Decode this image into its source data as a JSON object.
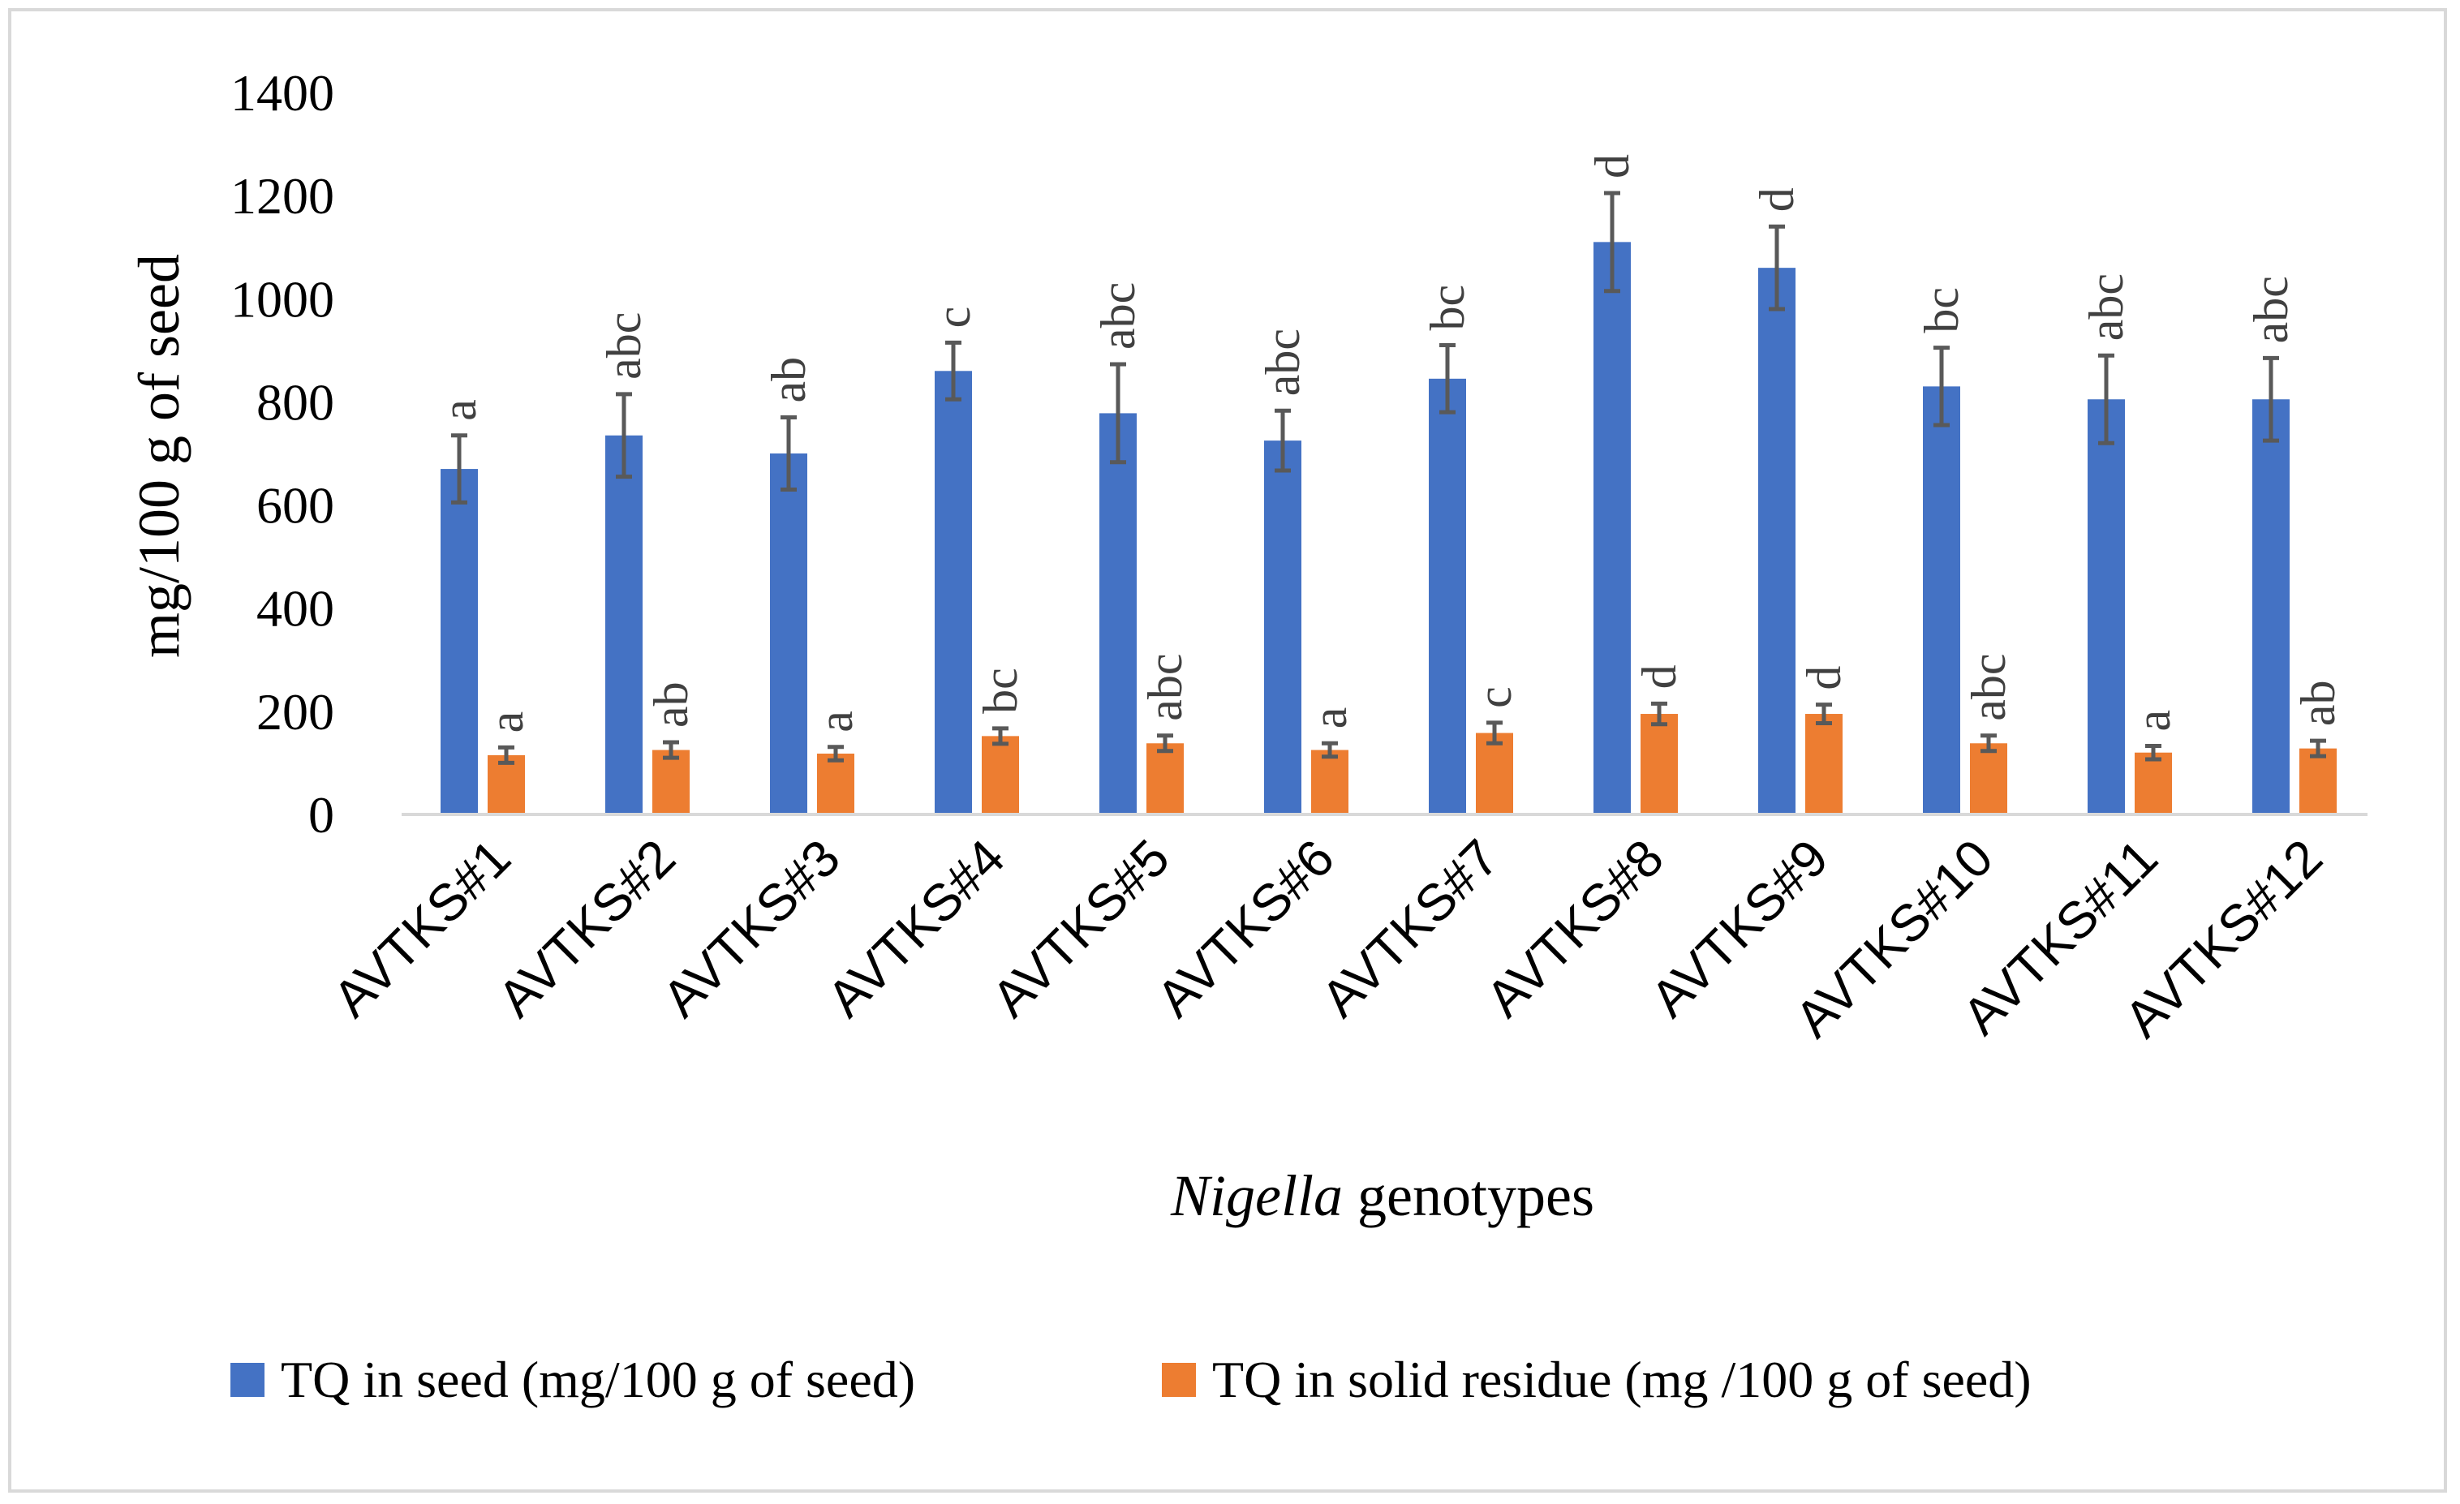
{
  "chart_data": {
    "type": "bar",
    "title": "",
    "xlabel_italic": "Nigella",
    "xlabel_rest": " genotypes",
    "ylabel": "mg/100 g of seed",
    "ylim": [
      0,
      1400
    ],
    "yticks": [
      0,
      200,
      400,
      600,
      800,
      1000,
      1200,
      1400
    ],
    "grid": false,
    "legend_position": "bottom",
    "categories": [
      "AVTKS#1",
      "AVTKS#2",
      "AVTKS#3",
      "AVTKS#4",
      "AVTKS#5",
      "AVTKS#6",
      "AVTKS#7",
      "AVTKS#8",
      "AVTKS#9",
      "AVTKS#10",
      "AVTKS#11",
      "AVTKS#12"
    ],
    "series": [
      {
        "name": "TQ in seed (mg/100 g of seed)",
        "color": "#4472c4",
        "values": [
          670,
          735,
          700,
          860,
          778,
          725,
          845,
          1110,
          1060,
          830,
          805,
          805
        ],
        "errors": [
          65,
          80,
          70,
          55,
          95,
          58,
          65,
          95,
          80,
          75,
          85,
          80
        ],
        "significance": [
          "a",
          "abc",
          "ab",
          "c",
          "abc",
          "abc",
          "bc",
          "d",
          "d",
          "bc",
          "abc",
          "abc"
        ]
      },
      {
        "name": "TQ in solid residue (mg /100 g of seed)",
        "color": "#ed7d31",
        "values": [
          115,
          125,
          118,
          152,
          138,
          125,
          158,
          195,
          195,
          138,
          120,
          128
        ],
        "errors": [
          15,
          15,
          13,
          15,
          15,
          13,
          20,
          20,
          18,
          15,
          13,
          15
        ],
        "significance": [
          "a",
          "ab",
          "a",
          "bc",
          "abc",
          "a",
          "c",
          "d",
          "d",
          "abc",
          "a",
          "ab"
        ]
      }
    ]
  }
}
